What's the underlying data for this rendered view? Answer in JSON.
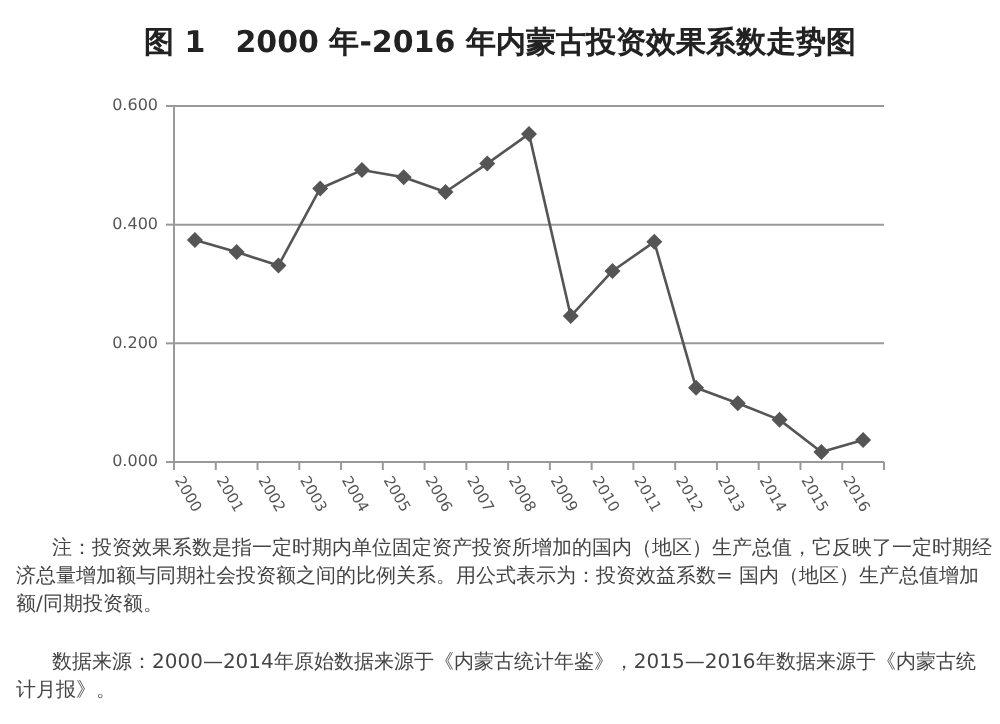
{
  "chart_data": {
    "type": "line",
    "title": "图 1　2000 年-2016 年内蒙古投资效果系数走势图",
    "categories": [
      "2000",
      "2001",
      "2002",
      "2003",
      "2004",
      "2005",
      "2006",
      "2007",
      "2008",
      "2009",
      "2010",
      "2011",
      "2012",
      "2013",
      "2014",
      "2015",
      "2016"
    ],
    "series": [
      {
        "color": "#555555",
        "values": [
          0.374,
          0.354,
          0.331,
          0.461,
          0.492,
          0.48,
          0.455,
          0.503,
          0.553,
          0.246,
          0.322,
          0.371,
          0.125,
          0.099,
          0.071,
          0.017,
          0.037
        ]
      }
    ],
    "ylim": [
      0,
      0.6
    ],
    "yticks": [
      {
        "value": 0,
        "label": "0.000"
      },
      {
        "value": 0.2,
        "label": "0.200"
      },
      {
        "value": 0.4,
        "label": "0.400"
      },
      {
        "value": 0.6,
        "label": "0.600"
      }
    ],
    "grid": "y",
    "marker": "diamond",
    "line_style": "solid",
    "annotations": [
      "注：投资效果系数是指一定时期内单位固定资产投资所增加的国内（地区）生产总值，它反映了一定时期经济总量增加额与同期社会投资额之间的比例关系。用公式表示为：投资效益系数= 国内（地区）生产总值增加额/同期投资额。",
      "数据来源：2000—2014年原始数据来源于《内蒙古统计年鉴》，2015—2016年数据来源于《内蒙古统计月报》。"
    ]
  }
}
